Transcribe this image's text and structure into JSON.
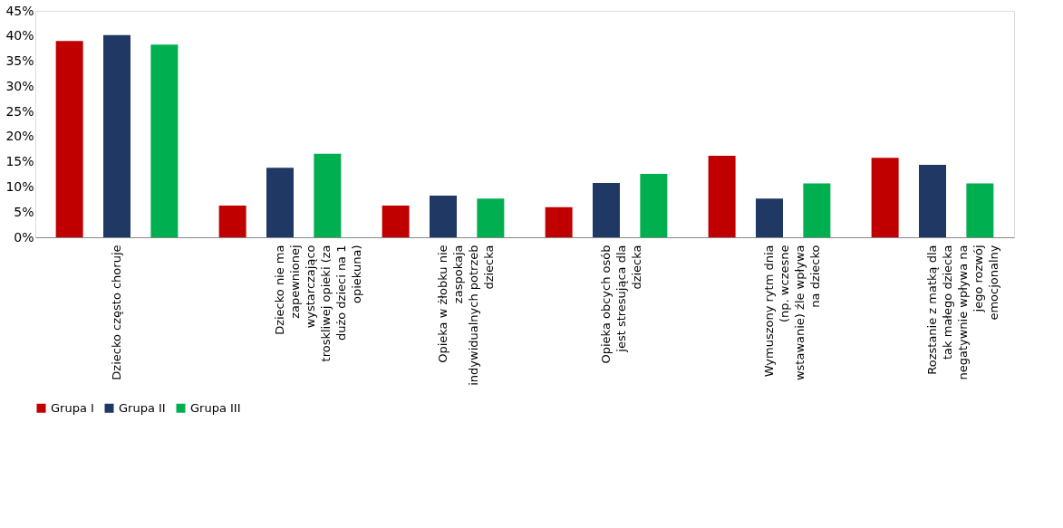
{
  "chart_data": {
    "type": "bar",
    "categories": [
      "Dziecko często choruje",
      "Dziecko nie ma zapewnionej wystarczająco troskliwej opieki (za dużo dzieci na 1 opiekuna)",
      "Opieka w żłobku nie zaspokaja indywidualnych potrzeb dziecka",
      "Opieka obcych osób jest stresująca dla dziecka",
      "Wymuszony rytm dnia (np. wczesne wstawanie) źle wpływa na dziecko",
      "Rozstanie z matką dla tak małego dziecka negatywnie wpływa na jego rozwój emocjonalny"
    ],
    "series": [
      {
        "name": "Grupa I",
        "color": "#c00000",
        "values": [
          39.0,
          6.3,
          6.3,
          6.0,
          16.2,
          15.8
        ]
      },
      {
        "name": "Grupa II",
        "color": "#1f3864",
        "values": [
          40.2,
          13.8,
          8.3,
          10.8,
          7.7,
          14.4
        ]
      },
      {
        "name": "Grupa III",
        "color": "#00b050",
        "values": [
          38.3,
          16.6,
          7.7,
          12.6,
          10.7,
          10.7
        ]
      }
    ],
    "ylim": [
      0,
      45
    ],
    "yticks": [
      {
        "value": 0,
        "label": "0%"
      },
      {
        "value": 5,
        "label": "5%"
      },
      {
        "value": 10,
        "label": "10%"
      },
      {
        "value": 15,
        "label": "15%"
      },
      {
        "value": 20,
        "label": "20%"
      },
      {
        "value": 25,
        "label": "25%"
      },
      {
        "value": 30,
        "label": "30%"
      },
      {
        "value": 35,
        "label": "35%"
      },
      {
        "value": 40,
        "label": "40%"
      },
      {
        "value": 45,
        "label": "45%"
      }
    ],
    "grid": false,
    "legend": "bottom"
  }
}
